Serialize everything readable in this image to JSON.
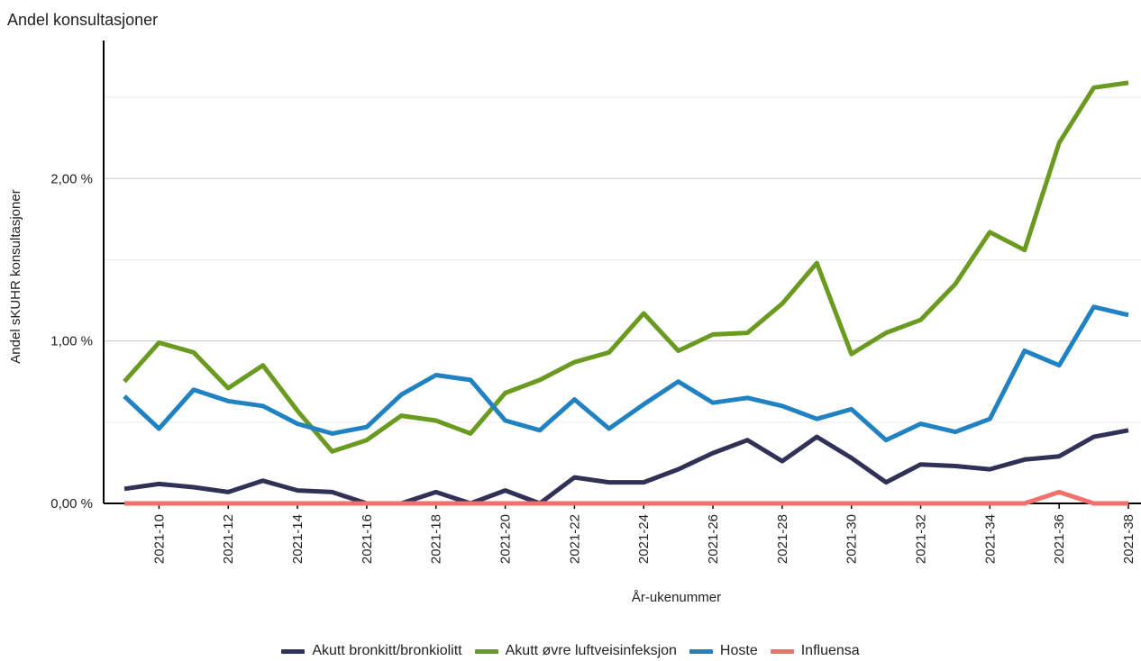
{
  "chart_data": {
    "type": "line",
    "title": "Andel konsultasjoner",
    "xlabel": "År-ukenummer",
    "ylabel": "Andel sKUHR konsultasjoner",
    "ylim": [
      0,
      2.6
    ],
    "yticks": [
      0,
      1,
      2
    ],
    "ytick_labels": [
      "0,00 %",
      "1,00 %",
      "2,00 %"
    ],
    "grid": true,
    "legend_position": "bottom",
    "x": [
      "2021-09",
      "2021-10",
      "2021-11",
      "2021-12",
      "2021-13",
      "2021-14",
      "2021-15",
      "2021-16",
      "2021-17",
      "2021-18",
      "2021-19",
      "2021-20",
      "2021-21",
      "2021-22",
      "2021-23",
      "2021-24",
      "2021-25",
      "2021-26",
      "2021-27",
      "2021-28",
      "2021-29",
      "2021-30",
      "2021-31",
      "2021-32",
      "2021-33",
      "2021-34",
      "2021-35",
      "2021-36",
      "2021-37",
      "2021-38"
    ],
    "xtick_labels": [
      "2021-10",
      "2021-12",
      "2021-14",
      "2021-16",
      "2021-18",
      "2021-20",
      "2021-22",
      "2021-24",
      "2021-26",
      "2021-28",
      "2021-30",
      "2021-32",
      "2021-34",
      "2021-36",
      "2021-38"
    ],
    "series": [
      {
        "name": "Akutt bronkitt/bronkiolitt",
        "color": "#2f3157",
        "values": [
          0.09,
          0.12,
          0.1,
          0.07,
          0.14,
          0.08,
          0.07,
          0.0,
          0.0,
          0.07,
          0.0,
          0.08,
          0.0,
          0.16,
          0.13,
          0.13,
          0.21,
          0.31,
          0.39,
          0.26,
          0.41,
          0.28,
          0.13,
          0.24,
          0.23,
          0.21,
          0.27,
          0.29,
          0.41,
          0.45
        ]
      },
      {
        "name": "Akutt øvre luftveisinfeksjon",
        "color": "#6a9a1f",
        "values": [
          0.75,
          0.99,
          0.93,
          0.71,
          0.85,
          0.57,
          0.32,
          0.39,
          0.54,
          0.51,
          0.43,
          0.68,
          0.76,
          0.87,
          0.93,
          1.17,
          0.94,
          1.04,
          1.05,
          1.23,
          1.48,
          0.92,
          1.05,
          1.13,
          1.35,
          1.67,
          1.56,
          2.22,
          2.56,
          2.59
        ]
      },
      {
        "name": "Hoste",
        "color": "#2182c3",
        "values": [
          0.66,
          0.46,
          0.7,
          0.63,
          0.6,
          0.49,
          0.43,
          0.47,
          0.67,
          0.79,
          0.76,
          0.51,
          0.45,
          0.64,
          0.46,
          0.61,
          0.75,
          0.62,
          0.65,
          0.6,
          0.52,
          0.58,
          0.39,
          0.49,
          0.44,
          0.52,
          0.94,
          0.85,
          1.21,
          1.16
        ]
      },
      {
        "name": "Influensa",
        "color": "#f2706b",
        "values": [
          0,
          0,
          0,
          0,
          0,
          0,
          0,
          0,
          0,
          0,
          0,
          0,
          0,
          0,
          0,
          0,
          0,
          0,
          0,
          0,
          0,
          0,
          0,
          0,
          0,
          0,
          0,
          0.07,
          0,
          0
        ]
      }
    ]
  }
}
